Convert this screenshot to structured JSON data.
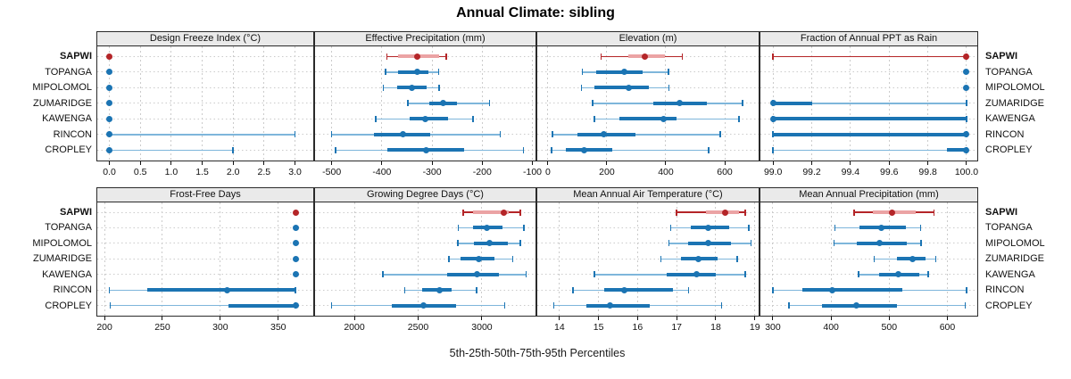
{
  "title": "Annual Climate: sibling",
  "footer": "5th-25th-50th-75th-95th Percentiles",
  "sites": [
    "SAPWI",
    "TOPANGA",
    "MIPOLOMOL",
    "ZUMARIDGE",
    "KAWENGA",
    "RINCON",
    "CROPLEY"
  ],
  "highlight_site": "SAPWI",
  "colors": {
    "highlight_dark": "#B42528",
    "highlight_light": "#EBA3A4",
    "normal_dark": "#1B74B3",
    "normal_light": "#7EB6DB",
    "header_bg": "#EAEAEA",
    "frame": "#2A2A2A",
    "grid": "#CBCBCB",
    "text": "#111111"
  },
  "chart_data": {
    "type": "percentile_dotplot",
    "description": "Grid of 8 panels (4 x 2). Each panel shows horizontal percentile intervals (5th-25th-50th-75th-95th) per site; thin light whisker = 5th-95th with end caps, thick dark band = 25th-75th, dot = median. SAPWI row highlighted in red (dark thin whisker, light band).",
    "percentiles": [
      "5th",
      "25th",
      "50th",
      "75th",
      "95th"
    ],
    "legend_position": "none",
    "grid": "dashed vertical at ticks, dotted horizontal per site row",
    "panels": [
      {
        "title": "Design Freeze Index (°C)",
        "row": 0,
        "col": 0,
        "range": [
          -0.21,
          3.31
        ],
        "ticks": [
          0,
          0.5,
          1,
          1.5,
          2,
          2.5,
          3
        ],
        "tick_labels": [
          "0.0",
          "0.5",
          "1.0",
          "1.5",
          "2.0",
          "2.5",
          "3.0"
        ],
        "series": [
          [
            0,
            0,
            0,
            0,
            0
          ],
          [
            0,
            0,
            0,
            0,
            0
          ],
          [
            0,
            0,
            0,
            0,
            0
          ],
          [
            0,
            0,
            0,
            0,
            0
          ],
          [
            0,
            0,
            0,
            0,
            0
          ],
          [
            0,
            0,
            0,
            0,
            3.0
          ],
          [
            0,
            0,
            0,
            0,
            2.0
          ]
        ]
      },
      {
        "title": "Effective Precipitation (mm)",
        "row": 0,
        "col": 1,
        "range": [
          -535,
          -92
        ],
        "ticks": [
          -500,
          -400,
          -300,
          -200,
          -100
        ],
        "tick_labels": [
          "-500",
          "-400",
          "-300",
          "-200",
          "-100"
        ],
        "series": [
          [
            -390,
            -367,
            -329,
            -286,
            -272
          ],
          [
            -393,
            -368,
            -330,
            -307,
            -287
          ],
          [
            -397,
            -370,
            -340,
            -310,
            -286
          ],
          [
            -348,
            -305,
            -278,
            -250,
            -185
          ],
          [
            -412,
            -344,
            -313,
            -268,
            -218
          ],
          [
            -500,
            -415,
            -358,
            -304,
            -164
          ],
          [
            -492,
            -390,
            -311,
            -236,
            -118
          ]
        ]
      },
      {
        "title": "Elevation (m)",
        "row": 0,
        "col": 2,
        "range": [
          -39,
          718
        ],
        "ticks": [
          0,
          200,
          400,
          600
        ],
        "tick_labels": [
          "0",
          "200",
          "400",
          "600"
        ],
        "series": [
          [
            180,
            272,
            330,
            396,
            456
          ],
          [
            117,
            163,
            258,
            322,
            409
          ],
          [
            114,
            158,
            275,
            342,
            411
          ],
          [
            152,
            357,
            446,
            540,
            660
          ],
          [
            158,
            243,
            391,
            436,
            649
          ],
          [
            15,
            100,
            190,
            297,
            585
          ],
          [
            12,
            60,
            124,
            218,
            545
          ]
        ]
      },
      {
        "title": "Fraction of Annual PPT as Rain",
        "row": 0,
        "col": 3,
        "range": [
          98.93,
          100.06
        ],
        "ticks": [
          99.0,
          99.2,
          99.4,
          99.6,
          99.8,
          100.0
        ],
        "tick_labels": [
          "99.0",
          "99.2",
          "99.4",
          "99.6",
          "99.8",
          "100.0"
        ],
        "series": [
          [
            99.0,
            100,
            100,
            100,
            100
          ],
          [
            100,
            100,
            100,
            100,
            100
          ],
          [
            100,
            100,
            100,
            100,
            100
          ],
          [
            99.0,
            99.0,
            99.0,
            99.2,
            100
          ],
          [
            99.0,
            99.0,
            99.0,
            100,
            100
          ],
          [
            99.0,
            99.0,
            100,
            100,
            100
          ],
          [
            99.0,
            99.9,
            100,
            100,
            100
          ]
        ]
      },
      {
        "title": "Frost-Free Days",
        "row": 1,
        "col": 0,
        "range": [
          193,
          381
        ],
        "ticks": [
          200,
          250,
          300,
          350
        ],
        "tick_labels": [
          "200",
          "250",
          "300",
          "350"
        ],
        "series": [
          [
            365,
            365,
            365,
            365,
            365
          ],
          [
            365,
            365,
            365,
            365,
            365
          ],
          [
            365,
            365,
            365,
            365,
            365
          ],
          [
            365,
            365,
            365,
            365,
            365
          ],
          [
            365,
            365,
            365,
            365,
            365
          ],
          [
            204,
            237,
            306,
            365,
            365
          ],
          [
            205,
            307,
            365,
            365,
            365
          ]
        ]
      },
      {
        "title": "Growing Degree Days (°C)",
        "row": 1,
        "col": 1,
        "range": [
          1685,
          3427
        ],
        "ticks": [
          2000,
          2500,
          3000
        ],
        "tick_labels": [
          "2000",
          "2500",
          "3000"
        ],
        "series": [
          [
            2855,
            2930,
            3175,
            3210,
            3300
          ],
          [
            2815,
            2930,
            3040,
            3160,
            3330
          ],
          [
            2810,
            2935,
            3060,
            3200,
            3300
          ],
          [
            2740,
            2830,
            2975,
            3100,
            3240
          ],
          [
            2225,
            2725,
            2960,
            3130,
            3345
          ],
          [
            2395,
            2530,
            2670,
            2760,
            2960
          ],
          [
            1820,
            2295,
            2545,
            2800,
            3180
          ]
        ]
      },
      {
        "title": "Mean Annual Air Temperature (°C)",
        "row": 1,
        "col": 2,
        "range": [
          13.41,
          19.12
        ],
        "ticks": [
          14,
          15,
          16,
          17,
          18,
          19
        ],
        "tick_labels": [
          "14",
          "15",
          "16",
          "17",
          "18",
          "19"
        ],
        "series": [
          [
            17.0,
            17.75,
            18.25,
            18.6,
            18.75
          ],
          [
            16.85,
            17.35,
            17.8,
            18.35,
            18.85
          ],
          [
            16.8,
            17.3,
            17.8,
            18.4,
            18.9
          ],
          [
            16.6,
            17.1,
            17.55,
            18.05,
            18.55
          ],
          [
            14.9,
            16.75,
            17.5,
            18.0,
            18.75
          ],
          [
            14.35,
            15.15,
            15.65,
            16.9,
            17.3
          ],
          [
            13.85,
            14.7,
            15.3,
            16.3,
            18.15
          ]
        ]
      },
      {
        "title": "Mean Annual Precipitation (mm)",
        "row": 1,
        "col": 3,
        "range": [
          277,
          653
        ],
        "ticks": [
          300,
          400,
          500,
          600
        ],
        "tick_labels": [
          "300",
          "400",
          "500",
          "600"
        ],
        "series": [
          [
            440,
            472,
            505,
            546,
            577
          ],
          [
            407,
            449,
            487,
            528,
            554
          ],
          [
            405,
            444,
            484,
            530,
            555
          ],
          [
            474,
            513,
            540,
            562,
            580
          ],
          [
            447,
            483,
            515,
            552,
            567
          ],
          [
            300,
            350,
            402,
            523,
            633
          ],
          [
            328,
            385,
            444,
            513,
            631
          ]
        ]
      }
    ]
  }
}
